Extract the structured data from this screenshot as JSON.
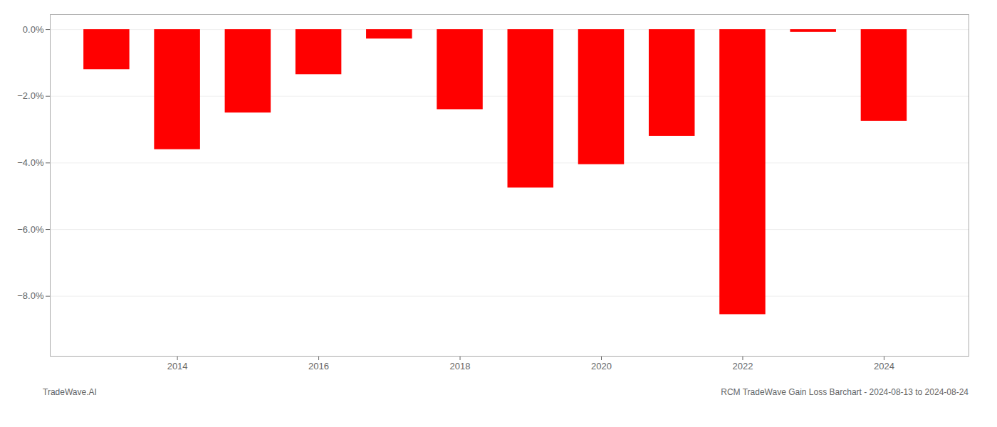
{
  "chart_data": {
    "type": "bar",
    "x": [
      2013,
      2014,
      2015,
      2016,
      2017,
      2018,
      2019,
      2020,
      2021,
      2022,
      2023,
      2024
    ],
    "values": [
      -1.2,
      -3.6,
      -2.5,
      -1.35,
      -0.28,
      -2.4,
      -4.75,
      -4.05,
      -3.2,
      -8.55,
      -0.08,
      -2.75
    ],
    "color": "#ff0000",
    "xlim": [
      2012.2,
      2025.2
    ],
    "xticks": [
      2014,
      2016,
      2018,
      2020,
      2022,
      2024
    ],
    "ylim": [
      -9.8,
      0.45
    ],
    "yticks": [
      {
        "value": 0.0,
        "label": "0.0%"
      },
      {
        "value": -2.0,
        "label": "−2.0%"
      },
      {
        "value": -4.0,
        "label": "−4.0%"
      },
      {
        "value": -6.0,
        "label": "−6.0%"
      },
      {
        "value": -8.0,
        "label": "−8.0%"
      }
    ],
    "grid": true,
    "annotations": [
      "TradeWave.AI",
      "RCM TradeWave Gain Loss Barchart - 2024-08-13 to 2024-08-24"
    ]
  }
}
